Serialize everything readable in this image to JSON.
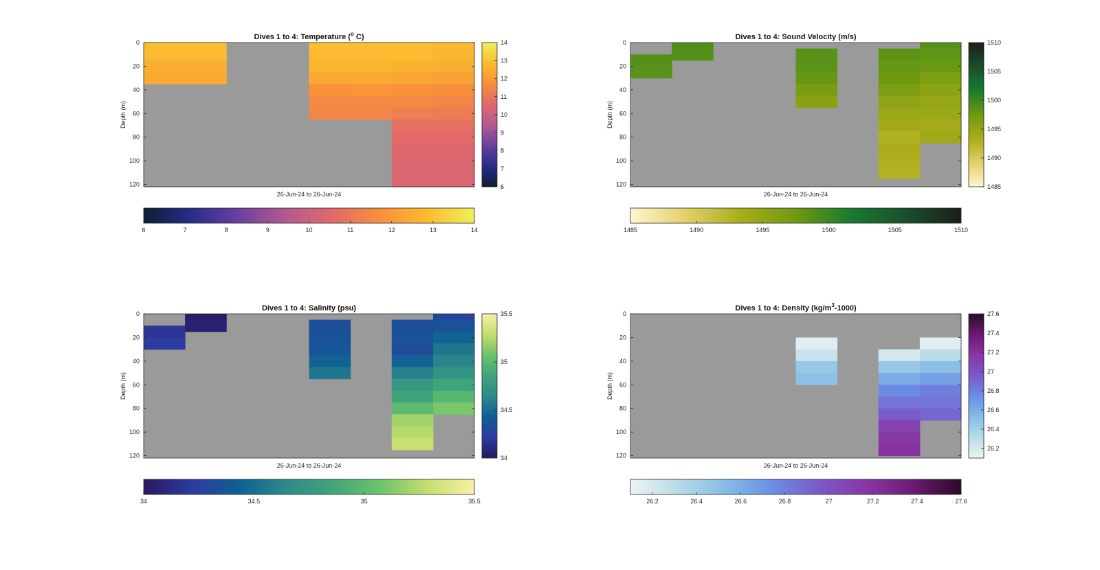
{
  "chart_data": [
    {
      "id": "temperature",
      "type": "heatmap",
      "title": "Dives 1 to 4: Temperature (",
      "title_sup": "o",
      "title_after": " C)",
      "xlabel": "26-Jun-24 to 26-Jun-24",
      "ylabel": "Depth (m)",
      "ylim": [
        0,
        122
      ],
      "yticks": [
        "0",
        "20",
        "40",
        "60",
        "80",
        "100",
        "120"
      ],
      "clim": [
        6,
        14
      ],
      "cticks": [
        "6",
        "7",
        "8",
        "9",
        "10",
        "11",
        "12",
        "13",
        "14"
      ],
      "cmap": [
        "#0c1f33",
        "#262d8a",
        "#6b3fa0",
        "#b25a8f",
        "#e2696a",
        "#f98f3a",
        "#fbbc2e",
        "#eef05c"
      ],
      "columns": [
        {
          "depths": [
            0,
            10,
            20,
            30
          ],
          "values": [
            12.9,
            12.8,
            12.5,
            12.4
          ]
        },
        {
          "depths": [
            0,
            10,
            20,
            30
          ],
          "values": [
            12.9,
            12.8,
            12.5,
            12.4
          ]
        },
        {
          "depths": [],
          "values": []
        },
        {
          "depths": [],
          "values": []
        },
        {
          "depths": [
            0,
            10,
            20,
            30,
            40,
            50,
            60
          ],
          "values": [
            12.9,
            12.8,
            12.7,
            12.4,
            11.8,
            11.5,
            11.4
          ]
        },
        {
          "depths": [
            0,
            10,
            20,
            30,
            40,
            50,
            60
          ],
          "values": [
            12.9,
            12.8,
            12.7,
            12.4,
            11.9,
            11.5,
            11.4
          ]
        },
        {
          "depths": [
            0,
            10,
            20,
            30,
            40,
            50,
            60,
            70,
            80,
            90,
            100,
            110,
            120
          ],
          "values": [
            12.9,
            12.8,
            12.6,
            12.3,
            11.8,
            11.5,
            11.2,
            10.8,
            10.6,
            10.5,
            10.4,
            10.4,
            10.4
          ]
        },
        {
          "depths": [
            0,
            10,
            20,
            30,
            40,
            50,
            60,
            70,
            80,
            90,
            100,
            110,
            120
          ],
          "values": [
            12.8,
            12.7,
            12.5,
            12.2,
            11.7,
            11.4,
            11.1,
            10.8,
            10.6,
            10.5,
            10.4,
            10.4,
            10.4
          ]
        }
      ]
    },
    {
      "id": "sound_velocity",
      "type": "heatmap",
      "title": "Dives 1 to 4: Sound Velocity (m/s)",
      "xlabel": "26-Jun-24 to 26-Jun-24",
      "ylabel": "Depth (m)",
      "ylim": [
        0,
        122
      ],
      "yticks": [
        "0",
        "20",
        "40",
        "60",
        "80",
        "100",
        "120"
      ],
      "clim": [
        1485,
        1510
      ],
      "cticks": [
        "1485",
        "1490",
        "1495",
        "1500",
        "1505",
        "1510"
      ],
      "cmap": [
        "#fdf7cf",
        "#e4d06a",
        "#a9ac1a",
        "#6f9a10",
        "#197a2f",
        "#1a4e2c",
        "#1a1f1a"
      ],
      "columns": [
        {
          "depths": [
            15,
            25
          ],
          "values": [
            1498.8,
            1498.6
          ]
        },
        {
          "depths": [
            0,
            10
          ],
          "values": [
            1499.0,
            1498.8
          ]
        },
        {
          "depths": [],
          "values": []
        },
        {
          "depths": [],
          "values": []
        },
        {
          "depths": [
            10,
            20,
            30,
            40,
            50
          ],
          "values": [
            1498.6,
            1498.4,
            1498.0,
            1496.8,
            1495.6
          ]
        },
        {
          "depths": [],
          "values": []
        },
        {
          "depths": [
            10,
            20,
            30,
            40,
            50,
            60,
            70,
            80,
            90,
            100,
            110
          ],
          "values": [
            1498.4,
            1498.0,
            1497.6,
            1496.6,
            1495.2,
            1494.4,
            1493.8,
            1492.8,
            1493.2,
            1493.0,
            1492.8
          ]
        },
        {
          "depths": [
            0,
            10,
            20,
            30,
            40,
            50,
            60,
            70,
            80
          ],
          "values": [
            1498.8,
            1498.2,
            1497.8,
            1496.4,
            1495.4,
            1494.8,
            1494.2,
            1493.6,
            1494.0
          ]
        }
      ]
    },
    {
      "id": "salinity",
      "type": "heatmap",
      "title": "Dives 1 to 4: Salinity (psu)",
      "xlabel": "26-Jun-24 to 26-Jun-24",
      "ylabel": "Depth (m)",
      "ylim": [
        0,
        122
      ],
      "yticks": [
        "0",
        "20",
        "40",
        "60",
        "80",
        "100",
        "120"
      ],
      "clim": [
        34,
        35.5
      ],
      "cticks": [
        "34",
        "34.5",
        "35",
        "35.5"
      ],
      "cmap": [
        "#28195e",
        "#2d3aa0",
        "#0f5e94",
        "#2c8a8a",
        "#3fa57a",
        "#6cc36b",
        "#c5de6e",
        "#faf0a6"
      ],
      "columns": [
        {
          "depths": [
            15,
            25
          ],
          "values": [
            34.18,
            34.22
          ]
        },
        {
          "depths": [
            0,
            10
          ],
          "values": [
            34.02,
            34.06
          ]
        },
        {
          "depths": [],
          "values": []
        },
        {
          "depths": [],
          "values": []
        },
        {
          "depths": [
            10,
            20,
            30,
            40,
            50
          ],
          "values": [
            34.34,
            34.36,
            34.38,
            34.45,
            34.55
          ]
        },
        {
          "depths": [],
          "values": []
        },
        {
          "depths": [
            10,
            20,
            30,
            40,
            50,
            60,
            70,
            80,
            90,
            100,
            110
          ],
          "values": [
            34.34,
            34.36,
            34.32,
            34.45,
            34.6,
            34.75,
            34.85,
            35.0,
            35.2,
            35.25,
            35.3
          ]
        },
        {
          "depths": [
            0,
            10,
            20,
            30,
            40,
            50,
            60,
            70,
            80
          ],
          "values": [
            34.28,
            34.35,
            34.45,
            34.55,
            34.62,
            34.72,
            34.85,
            34.98,
            35.1
          ]
        }
      ]
    },
    {
      "id": "density",
      "type": "heatmap",
      "title": "Dives 1 to 4: Density (kg/m",
      "title_sup": "3",
      "title_after": "-1000)",
      "xlabel": "26-Jun-24 to 26-Jun-24",
      "ylabel": "Depth (m)",
      "ylim": [
        0,
        122
      ],
      "yticks": [
        "0",
        "20",
        "40",
        "60",
        "80",
        "100",
        "120"
      ],
      "clim": [
        26.1,
        27.6
      ],
      "cticks": [
        "26.2",
        "26.4",
        "26.6",
        "26.8",
        "27",
        "27.2",
        "27.4",
        "27.6"
      ],
      "cbar_ticks": [
        "26.2",
        "26.4",
        "26.6",
        "26.8",
        "27",
        "27.2",
        "27.4",
        "27.6"
      ],
      "cmap": [
        "#eef4f4",
        "#b7dbe8",
        "#85bde7",
        "#6a8ee3",
        "#7b59c9",
        "#8a35a4",
        "#6a1a73",
        "#2a0a26"
      ],
      "columns": [
        {
          "depths": [],
          "values": []
        },
        {
          "depths": [],
          "values": []
        },
        {
          "depths": [],
          "values": []
        },
        {
          "depths": [],
          "values": []
        },
        {
          "depths": [
            25,
            35,
            45,
            55
          ],
          "values": [
            26.15,
            26.25,
            26.45,
            26.5
          ]
        },
        {
          "depths": [],
          "values": []
        },
        {
          "depths": [
            35,
            45,
            55,
            65,
            75,
            85,
            95,
            105,
            115
          ],
          "values": [
            26.2,
            26.45,
            26.6,
            26.75,
            26.85,
            26.95,
            27.1,
            27.15,
            27.2
          ]
        },
        {
          "depths": [
            25,
            35,
            45,
            55,
            65,
            75,
            85
          ],
          "values": [
            26.15,
            26.3,
            26.5,
            26.65,
            26.8,
            26.85,
            26.9
          ]
        }
      ]
    }
  ]
}
